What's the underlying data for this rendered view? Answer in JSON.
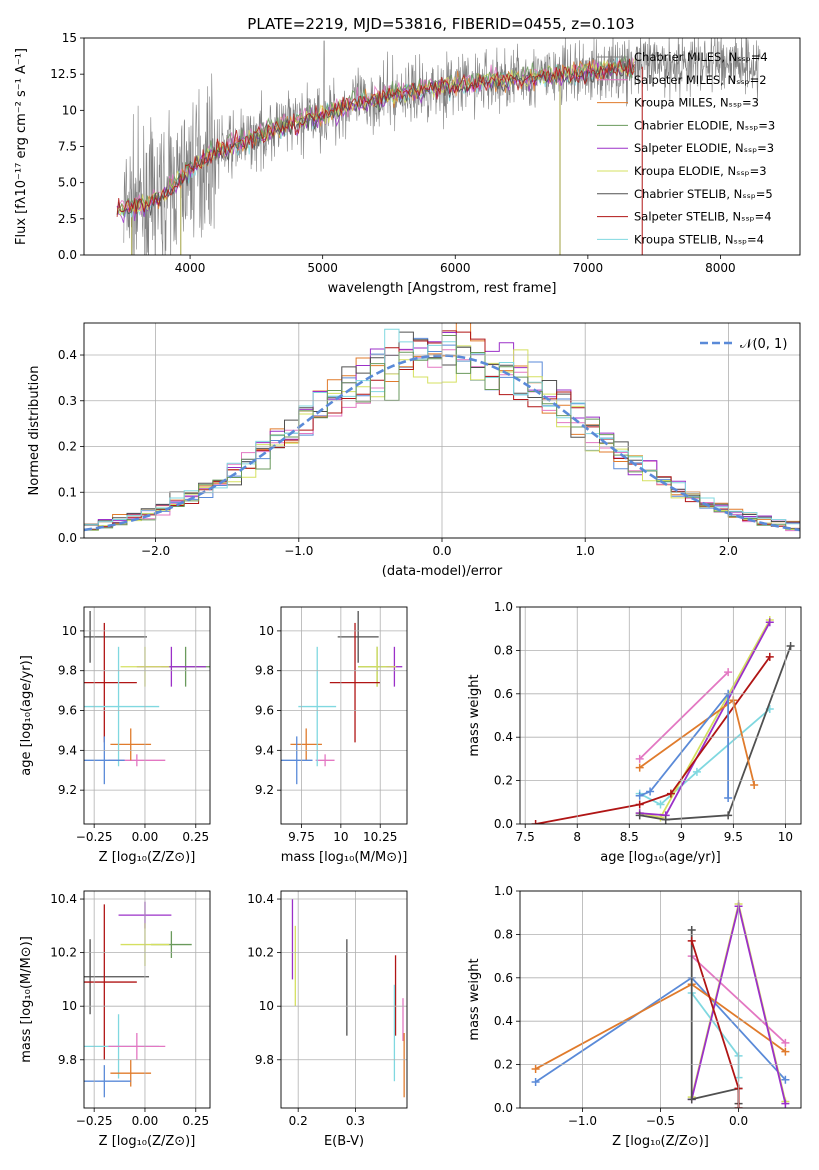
{
  "figure": {
    "title": "PLATE=2219, MJD=53816, FIBERID=0455, z=0.103"
  },
  "colors": {
    "data": "#808080",
    "series": [
      "#808080",
      "#e377c2",
      "#e07b2c",
      "#6a9a5c",
      "#9b30c8",
      "#d5e060",
      "#505050",
      "#b01515",
      "#80d8e0"
    ],
    "blue": "#5a8ad8",
    "gray_dark": "#505050"
  },
  "chart_data": [
    {
      "id": "spectrum",
      "type": "line",
      "xlabel": "wavelength [Angstrom, rest frame]",
      "ylabel": "Flux [fλ10⁻¹⁷ erg cm⁻² s⁻¹ A⁻¹]",
      "xlim": [
        3200,
        8600
      ],
      "ylim": [
        0,
        15
      ],
      "xticks": [
        4000,
        5000,
        6000,
        7000,
        8000
      ],
      "yticks": [
        0.0,
        2.5,
        5.0,
        7.5,
        10.0,
        12.5,
        15.0
      ],
      "grid": false,
      "legend_position": "right",
      "legend": [
        "Chabrier MILES, Nₛₛₚ=4",
        "Salpeter MILES, Nₛₛₚ=2",
        "Kroupa MILES, Nₛₛₚ=3",
        "Chabrier ELODIE, Nₛₛₚ=3",
        "Salpeter ELODIE, Nₛₛₚ=3",
        "Kroupa ELODIE, Nₛₛₚ=3",
        "Chabrier STELIB, Nₛₛₚ=5",
        "Salpeter STELIB, Nₛₛₚ=4",
        "Kroupa STELIB, Nₛₛₚ=4"
      ],
      "continuum": {
        "x": [
          3500,
          3700,
          3850,
          4000,
          4200,
          4400,
          4600,
          4800,
          5000,
          5200,
          5400,
          5600,
          5800,
          6000,
          6200,
          6400,
          6600,
          6800,
          7000,
          7200,
          7400,
          7500,
          7700,
          8000,
          8300
        ],
        "y": [
          3.2,
          3.6,
          4.5,
          6.0,
          7.2,
          7.8,
          8.6,
          9.2,
          9.7,
          10.4,
          10.8,
          11.2,
          11.5,
          11.8,
          12.0,
          12.2,
          12.3,
          12.5,
          12.7,
          12.9,
          13.0,
          13.1,
          13.2,
          13.4,
          13.3
        ]
      },
      "model_range": [
        3450,
        7350
      ]
    },
    {
      "id": "residuals",
      "type": "histogram",
      "xlabel": "(data-model)/error",
      "ylabel": "Normed distribution",
      "xlim": [
        -2.5,
        2.5
      ],
      "ylim": [
        0,
        0.47
      ],
      "xticks": [
        -2,
        -1,
        0,
        1,
        2
      ],
      "yticks": [
        0.0,
        0.1,
        0.2,
        0.3,
        0.4
      ],
      "grid": true,
      "legend": [
        "𝒩(0, 1)"
      ],
      "legend_position": "top-right"
    },
    {
      "id": "age-vs-Z",
      "type": "errorbar",
      "xlabel": "Z [log₁₀(Z/Z⊙)]",
      "ylabel": "age  [log₁₀(age/yr)]",
      "xlim": [
        -0.3,
        0.32
      ],
      "ylim": [
        9.03,
        10.12
      ],
      "xticks": [
        -0.25,
        0.0,
        0.25
      ],
      "xticklabels": [
        "−0.25",
        "0.00",
        "0.25"
      ],
      "yticks": [
        9.2,
        9.4,
        9.6,
        9.8,
        10.0
      ],
      "grid": true,
      "points": [
        {
          "x": -0.04,
          "y": 9.35,
          "xerr": 0.14,
          "yerr": 0.03,
          "c": 1
        },
        {
          "x": -0.07,
          "y": 9.43,
          "xerr": 0.1,
          "yerr": 0.08,
          "c": 2
        },
        {
          "x": 0.2,
          "y": 9.82,
          "xerr": 0.12,
          "yerr": 0.1,
          "c": 3
        },
        {
          "x": 0.13,
          "y": 9.82,
          "xerr": 0.17,
          "yerr": 0.1,
          "c": 4
        },
        {
          "x": 0.0,
          "y": 9.82,
          "xerr": 0.12,
          "yerr": 0.1,
          "c": 5
        },
        {
          "x": -0.27,
          "y": 9.97,
          "xerr": 0.28,
          "yerr": 0.13,
          "c": 6
        },
        {
          "x": -0.2,
          "y": 9.74,
          "xerr": 0.16,
          "yerr": 0.3,
          "c": 7
        },
        {
          "x": -0.13,
          "y": 9.62,
          "xerr": 0.2,
          "yerr": 0.3,
          "c": 8
        },
        {
          "x": -0.2,
          "y": 9.35,
          "xerr": 0.1,
          "yerr": 0.12,
          "c": "blue"
        }
      ]
    },
    {
      "id": "age-vs-mass",
      "type": "errorbar",
      "xlabel": "mass [log₁₀(M/M⊙)]",
      "ylabel": "",
      "xlim": [
        9.62,
        10.42
      ],
      "ylim": [
        9.03,
        10.12
      ],
      "xticks": [
        9.75,
        10.0,
        10.25
      ],
      "yticks": [
        9.2,
        9.4,
        9.6,
        9.8,
        10.0
      ],
      "grid": true,
      "points": [
        {
          "x": 9.9,
          "y": 9.35,
          "xerr": 0.06,
          "yerr": 0.03,
          "c": 1
        },
        {
          "x": 9.78,
          "y": 9.43,
          "xerr": 0.1,
          "yerr": 0.08,
          "c": 2
        },
        {
          "x": 10.23,
          "y": 9.82,
          "xerr": 0.12,
          "yerr": 0.1,
          "c": 3
        },
        {
          "x": 10.34,
          "y": 9.82,
          "xerr": 0.05,
          "yerr": 0.1,
          "c": 4
        },
        {
          "x": 10.23,
          "y": 9.82,
          "xerr": 0.12,
          "yerr": 0.1,
          "c": 5
        },
        {
          "x": 10.11,
          "y": 9.97,
          "xerr": 0.13,
          "yerr": 0.13,
          "c": 6
        },
        {
          "x": 10.09,
          "y": 9.74,
          "xerr": 0.16,
          "yerr": 0.3,
          "c": 7
        },
        {
          "x": 9.85,
          "y": 9.62,
          "xerr": 0.12,
          "yerr": 0.3,
          "c": 8
        },
        {
          "x": 9.72,
          "y": 9.35,
          "xerr": 0.1,
          "yerr": 0.12,
          "c": "blue"
        }
      ]
    },
    {
      "id": "weight-vs-age",
      "type": "line",
      "xlabel": "age  [log₁₀(age/yr)]",
      "ylabel": "mass weight",
      "xlim": [
        7.45,
        10.15
      ],
      "ylim": [
        0,
        1
      ],
      "xticks": [
        7.5,
        8.0,
        8.5,
        9.0,
        9.5,
        10.0
      ],
      "yticks": [
        0.0,
        0.2,
        0.4,
        0.6,
        0.8,
        1.0
      ],
      "grid": true,
      "series": [
        {
          "c": 8,
          "x": [
            8.6,
            8.8,
            9.15,
            9.85
          ],
          "y": [
            0.14,
            0.09,
            0.24,
            0.53
          ]
        },
        {
          "c": 5,
          "x": [
            8.6,
            8.8,
            9.85
          ],
          "y": [
            0.05,
            0.03,
            0.94
          ]
        },
        {
          "c": 4,
          "x": [
            8.6,
            8.85,
            9.85
          ],
          "y": [
            0.05,
            0.04,
            0.93
          ]
        },
        {
          "c": 6,
          "x": [
            8.6,
            8.85,
            9.45,
            10.05
          ],
          "y": [
            0.04,
            0.02,
            0.04,
            0.82
          ]
        },
        {
          "c": 7,
          "x": [
            7.6,
            8.6,
            8.9,
            9.85
          ],
          "y": [
            0.0,
            0.09,
            0.14,
            0.77
          ]
        },
        {
          "c": 1,
          "x": [
            8.6,
            9.45
          ],
          "y": [
            0.3,
            0.7
          ]
        },
        {
          "c": 2,
          "x": [
            8.6,
            9.5,
            9.7
          ],
          "y": [
            0.26,
            0.57,
            0.18
          ]
        },
        {
          "c": "blue",
          "x": [
            8.6,
            8.7,
            9.45,
            9.45
          ],
          "y": [
            0.13,
            0.15,
            0.6,
            0.12
          ]
        }
      ]
    },
    {
      "id": "mass-vs-Z",
      "type": "errorbar",
      "xlabel": "Z [log₁₀(Z/Z⊙)]",
      "ylabel": "mass [log₁₀(M/M⊙)]",
      "xlim": [
        -0.3,
        0.32
      ],
      "ylim": [
        9.62,
        10.43
      ],
      "xticks": [
        -0.25,
        0.0,
        0.25
      ],
      "xticklabels": [
        "−0.25",
        "0.00",
        "0.25"
      ],
      "yticks": [
        9.8,
        10.0,
        10.2,
        10.4
      ],
      "grid": true,
      "points": [
        {
          "x": 0.0,
          "y": 10.34,
          "xerr": 0.13,
          "yerr": 0.05,
          "c": 4
        },
        {
          "x": 0.13,
          "y": 10.23,
          "xerr": 0.1,
          "yerr": 0.05,
          "c": 3
        },
        {
          "x": 0.0,
          "y": 10.23,
          "xerr": 0.12,
          "yerr": 0.08,
          "c": 5
        },
        {
          "x": -0.27,
          "y": 10.11,
          "xerr": 0.29,
          "yerr": 0.14,
          "c": 6
        },
        {
          "x": -0.2,
          "y": 10.09,
          "xerr": 0.16,
          "yerr": 0.29,
          "c": 7
        },
        {
          "x": -0.13,
          "y": 9.85,
          "xerr": 0.2,
          "yerr": 0.12,
          "c": 8
        },
        {
          "x": -0.04,
          "y": 9.85,
          "xerr": 0.14,
          "yerr": 0.05,
          "c": 1
        },
        {
          "x": -0.07,
          "y": 9.75,
          "xerr": 0.1,
          "yerr": 0.05,
          "c": 2
        },
        {
          "x": -0.2,
          "y": 9.72,
          "xerr": 0.13,
          "yerr": 0.06,
          "c": "blue"
        }
      ]
    },
    {
      "id": "mass-vs-ebv",
      "type": "errorbar",
      "xlabel": "E(B-V)",
      "ylabel": "",
      "xlim": [
        0.17,
        0.39
      ],
      "ylim": [
        9.62,
        10.43
      ],
      "xticks": [
        0.2,
        0.3
      ],
      "yticks": [
        9.8,
        10.0,
        10.2,
        10.4
      ],
      "grid": true,
      "points": [
        {
          "x": 0.19,
          "y": 10.25,
          "xerr": 0.0,
          "yerr": 0.15,
          "c": 4
        },
        {
          "x": 0.195,
          "y": 10.15,
          "xerr": 0.0,
          "yerr": 0.15,
          "c": 5
        },
        {
          "x": 0.285,
          "y": 10.07,
          "xerr": 0.0,
          "yerr": 0.18,
          "c": 6
        },
        {
          "x": 0.37,
          "y": 10.04,
          "xerr": 0.0,
          "yerr": 0.15,
          "c": 7
        },
        {
          "x": 0.368,
          "y": 9.9,
          "xerr": 0.0,
          "yerr": 0.18,
          "c": 8
        },
        {
          "x": 0.383,
          "y": 9.95,
          "xerr": 0.0,
          "yerr": 0.08,
          "c": 1
        },
        {
          "x": 0.385,
          "y": 9.78,
          "xerr": 0.0,
          "yerr": 0.12,
          "c": 2
        }
      ]
    },
    {
      "id": "weight-vs-Z",
      "type": "line",
      "xlabel": "Z [log₁₀(Z/Z⊙)]",
      "ylabel": "mass weight",
      "xlim": [
        -1.4,
        0.4
      ],
      "ylim": [
        0,
        1
      ],
      "xticks": [
        -1.0,
        -0.5,
        0.0
      ],
      "xticklabels": [
        "−1.0",
        "−0.5",
        "0.0"
      ],
      "yticks": [
        0.0,
        0.2,
        0.4,
        0.6,
        0.8,
        1.0
      ],
      "grid": true,
      "series": [
        {
          "c": "blue",
          "x": [
            -1.3,
            -0.3,
            0.3
          ],
          "y": [
            0.12,
            0.6,
            0.13
          ]
        },
        {
          "c": 2,
          "x": [
            -1.3,
            -0.3,
            0.3
          ],
          "y": [
            0.18,
            0.57,
            0.26
          ]
        },
        {
          "c": 1,
          "x": [
            -0.3,
            0.3
          ],
          "y": [
            0.7,
            0.3
          ]
        },
        {
          "c": 8,
          "x": [
            -0.3,
            0.0,
            0.0
          ],
          "y": [
            0.53,
            0.24,
            0.14
          ]
        },
        {
          "c": 5,
          "x": [
            -0.3,
            0.0,
            0.3
          ],
          "y": [
            0.05,
            0.94,
            0.03
          ]
        },
        {
          "c": 4,
          "x": [
            -0.3,
            0.0,
            0.3
          ],
          "y": [
            0.04,
            0.93,
            0.02
          ]
        },
        {
          "c": 6,
          "x": [
            -0.3,
            -0.3,
            0.0,
            0.0
          ],
          "y": [
            0.82,
            0.04,
            0.09,
            0.02
          ]
        },
        {
          "c": 7,
          "x": [
            -0.3,
            0.0,
            0.0
          ],
          "y": [
            0.77,
            0.09,
            0.0
          ]
        }
      ]
    }
  ]
}
